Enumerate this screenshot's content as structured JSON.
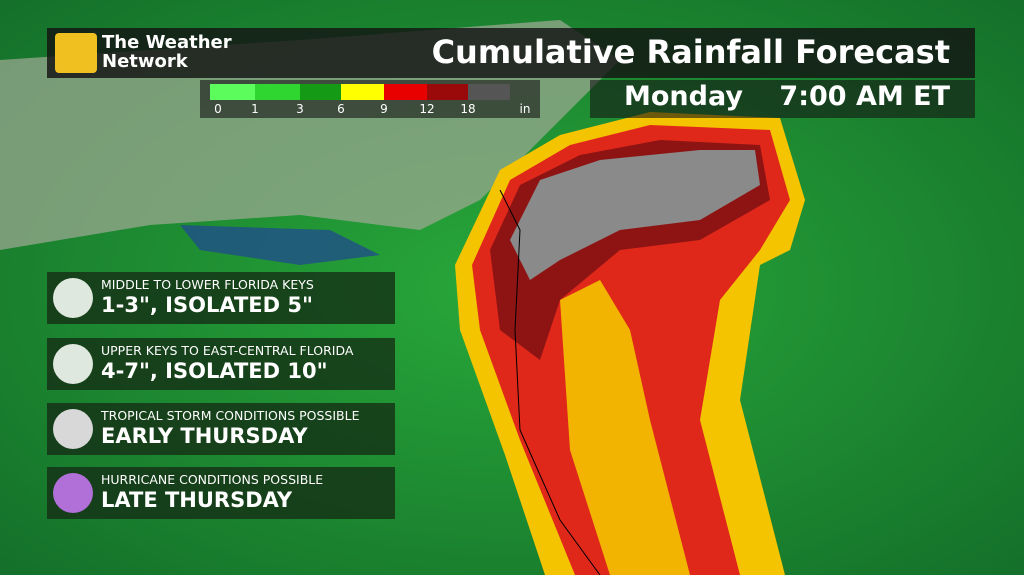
{
  "brand": {
    "line1": "The Weather",
    "line2": "Network"
  },
  "title": "Cumulative Rainfall Forecast",
  "time": {
    "day": "Monday",
    "clock": "7:00 AM ET"
  },
  "legend": {
    "labels": [
      "0",
      "1",
      "3",
      "6",
      "9",
      "12",
      "18"
    ],
    "unit": "in"
  },
  "panels": [
    {
      "heading": "MIDDLE TO LOWER FLORIDA KEYS",
      "detail": "1-3\", ISOLATED 5\""
    },
    {
      "heading": "UPPER KEYS TO EAST-CENTRAL FLORIDA",
      "detail": "4-7\", ISOLATED 10\""
    },
    {
      "heading": "TROPICAL STORM CONDITIONS POSSIBLE",
      "detail": "EARLY THURSDAY"
    },
    {
      "heading": "HURRICANE CONDITIONS POSSIBLE",
      "detail": "LATE THURSDAY"
    }
  ]
}
